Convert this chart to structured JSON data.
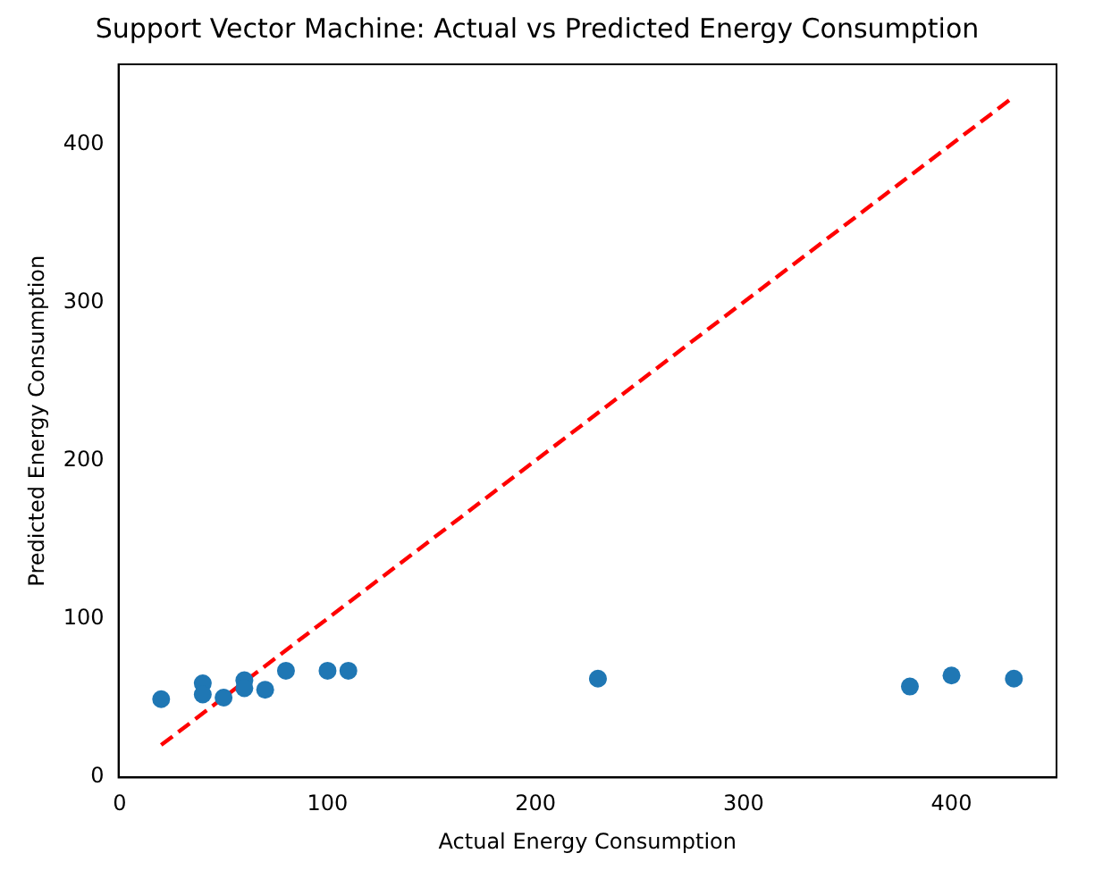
{
  "chart_data": {
    "type": "scatter",
    "title": "Support Vector Machine: Actual vs Predicted Energy Consumption",
    "xlabel": "Actual Energy Consumption",
    "ylabel": "Predicted Energy Consumption",
    "series": [
      {
        "color": "#1f77b4",
        "marker": "circle",
        "x": [
          20,
          40,
          40,
          50,
          60,
          60,
          70,
          80,
          100,
          110,
          230,
          380,
          400,
          430
        ],
        "values": [
          49,
          59,
          52,
          50,
          61,
          56,
          55,
          67,
          67,
          67,
          62,
          57,
          64,
          62
        ]
      },
      {
        "type": "line",
        "color": "#ff0000",
        "line_style": "dashed",
        "marker": "none",
        "x": [
          20,
          430
        ],
        "values": [
          20,
          430
        ]
      }
    ],
    "xlim": [
      -0.5,
      450.5
    ],
    "ylim": [
      -0.5,
      450.5
    ],
    "xticks": [
      0,
      100,
      200,
      300,
      400
    ],
    "yticks": [
      0,
      100,
      200,
      300,
      400
    ],
    "grid": false,
    "legend": false
  }
}
